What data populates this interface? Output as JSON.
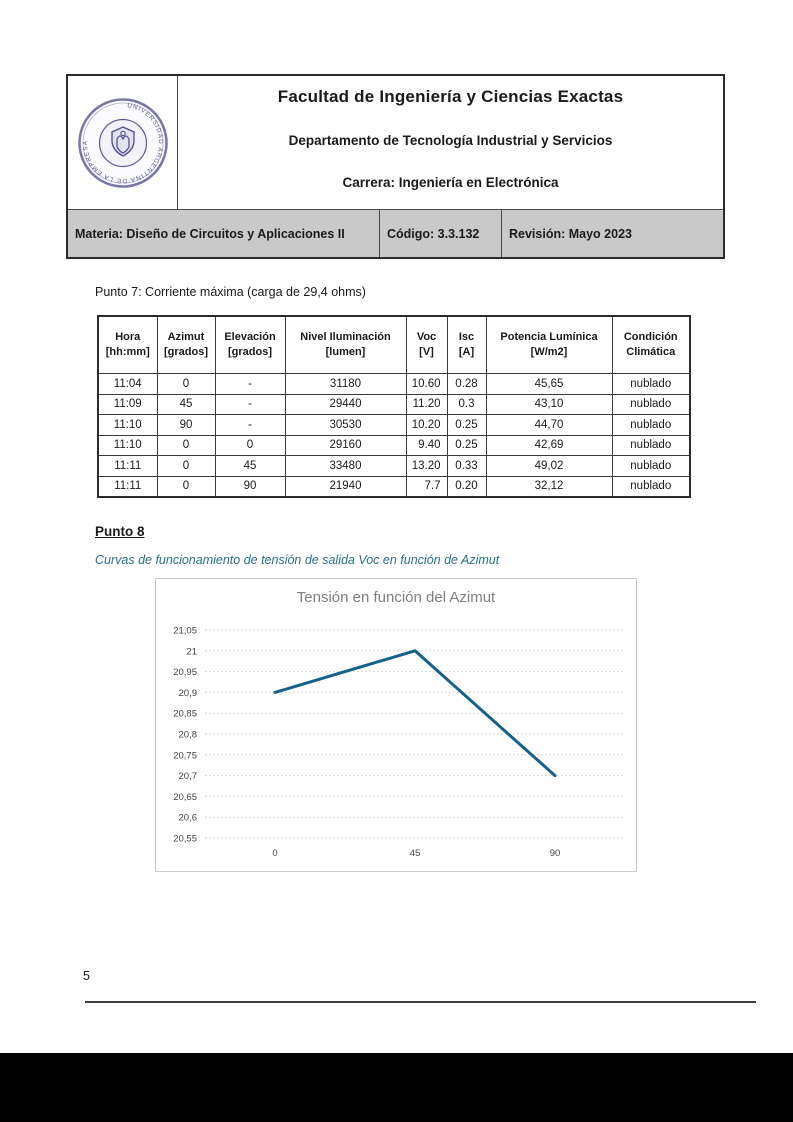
{
  "page": {
    "number": "5"
  },
  "doc_header": {
    "logo_ring_text": "UNIVERSIDAD ARGENTINA DE LA EMPRESA",
    "faculty": "Facultad de Ingeniería y Ciencias Exactas",
    "department": "Departamento de Tecnología Industrial y Servicios",
    "career": "Carrera: Ingeniería en Electrónica",
    "materia": "Materia: Diseño de Circuitos y Aplicaciones II",
    "codigo": "Código: 3.3.132",
    "revision": "Revisión: Mayo 2023"
  },
  "content": {
    "punto7_title": "Punto 7: Corriente máxima (carga de 29,4 ohms)",
    "table": {
      "headers": [
        "Hora\n[hh:mm]",
        "Azimut\n[grados]",
        "Elevación\n[grados]",
        "Nivel Iluminación\n[lumen]",
        "Voc\n[V]",
        "Isc\n[A]",
        "Potencia Lumínica\n[W/m2]",
        "Condición\nClimática"
      ],
      "rows": [
        [
          "11:04",
          "0",
          "-",
          "31180",
          "10.60",
          "0.28",
          "45,65",
          "nublado"
        ],
        [
          "11:09",
          "45",
          "-",
          "29440",
          "11.20",
          "0.3",
          "43,10",
          "nublado"
        ],
        [
          "11:10",
          "90",
          "-",
          "30530",
          "10.20",
          "0.25",
          "44,70",
          "nublado"
        ],
        [
          "11:10",
          "0",
          "0",
          "29160",
          "9.40",
          "0.25",
          "42,69",
          "nublado"
        ],
        [
          "11:11",
          "0",
          "45",
          "33480",
          "13.20",
          "0.33",
          "49,02",
          "nublado"
        ],
        [
          "11:11",
          "0",
          "90",
          "21940",
          "7.7",
          "0.20",
          "32,12",
          "nublado"
        ]
      ]
    },
    "punto8_title": "Punto 8",
    "punto8_caption": "Curvas de funcionamiento de tensión de salida Voc en función de Azimut"
  },
  "chart_data": {
    "type": "line",
    "title": "Tensión en función del Azimut",
    "categories": [
      "0",
      "45",
      "90"
    ],
    "values": [
      20.9,
      21.0,
      20.7
    ],
    "xlabel": "",
    "ylabel": "",
    "ylim": [
      20.55,
      21.05
    ],
    "y_tick_labels": [
      "21,05",
      "21",
      "20,95",
      "20,9",
      "20,85",
      "20,8",
      "20,75",
      "20,7",
      "20,65",
      "20,6",
      "20,55"
    ],
    "grid": true,
    "legend": "none",
    "line_color": "#16618c",
    "gridline_color": "#c9c9c9",
    "title_color": "#7f7f7f"
  },
  "colors": {
    "header_band_bg": "#c9c9c9",
    "logo_accent": "#55528f",
    "caption_text": "#26708e"
  }
}
